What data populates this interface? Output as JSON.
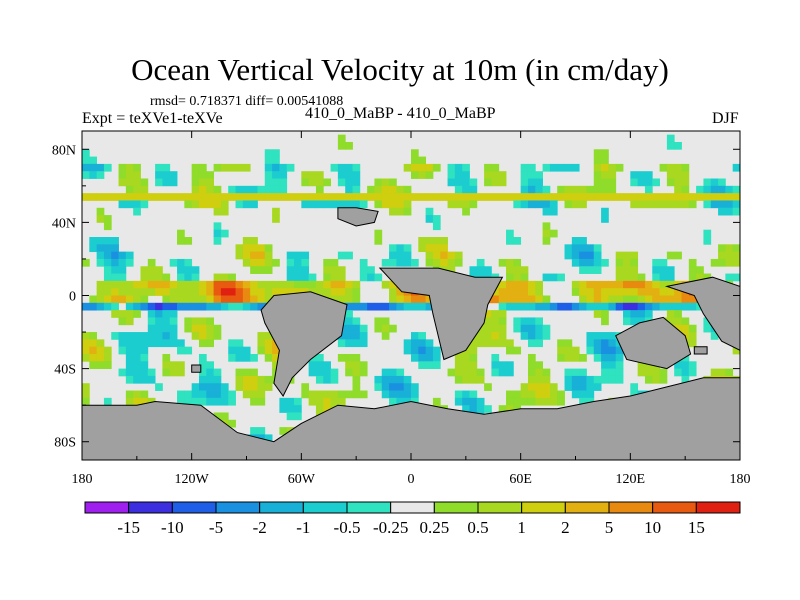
{
  "chart_data": {
    "type": "heatmap",
    "title": "Ocean Vertical Velocity at 10m (in cm/day)",
    "stats_text": "rmsd= 0.718371 diff= 0.00541088",
    "left_label": "Expt = teXVe1-teXVe",
    "center_label": "410_0_MaBP - 410_0_MaBP",
    "right_label": "DJF",
    "x_ticks": [
      "180",
      "120W",
      "60W",
      "0",
      "60E",
      "120E",
      "180"
    ],
    "x_tick_values": [
      -180,
      -120,
      -60,
      0,
      60,
      120,
      180
    ],
    "y_ticks": [
      "80N",
      "40N",
      "0",
      "40S",
      "80S"
    ],
    "y_tick_values": [
      80,
      40,
      0,
      -40,
      -80
    ],
    "xlim": [
      -180,
      180
    ],
    "ylim": [
      -90,
      90
    ],
    "colorbar_labels": [
      "-15",
      "-10",
      "-5",
      "-2",
      "-1",
      "-0.5",
      "-0.25",
      "0.25",
      "0.5",
      "1",
      "2",
      "5",
      "10",
      "15"
    ],
    "colorbar_colors": [
      "#9f1fef",
      "#3b2fdf",
      "#1f5fe8",
      "#1a90e0",
      "#19b0d8",
      "#1ccdd0",
      "#2fe2c0",
      "#e8e8e8",
      "#8fdc2a",
      "#a8d820",
      "#cfcf10",
      "#e2b010",
      "#e88a10",
      "#e85a10",
      "#e02010"
    ],
    "land_color": "#a0a0a0"
  }
}
